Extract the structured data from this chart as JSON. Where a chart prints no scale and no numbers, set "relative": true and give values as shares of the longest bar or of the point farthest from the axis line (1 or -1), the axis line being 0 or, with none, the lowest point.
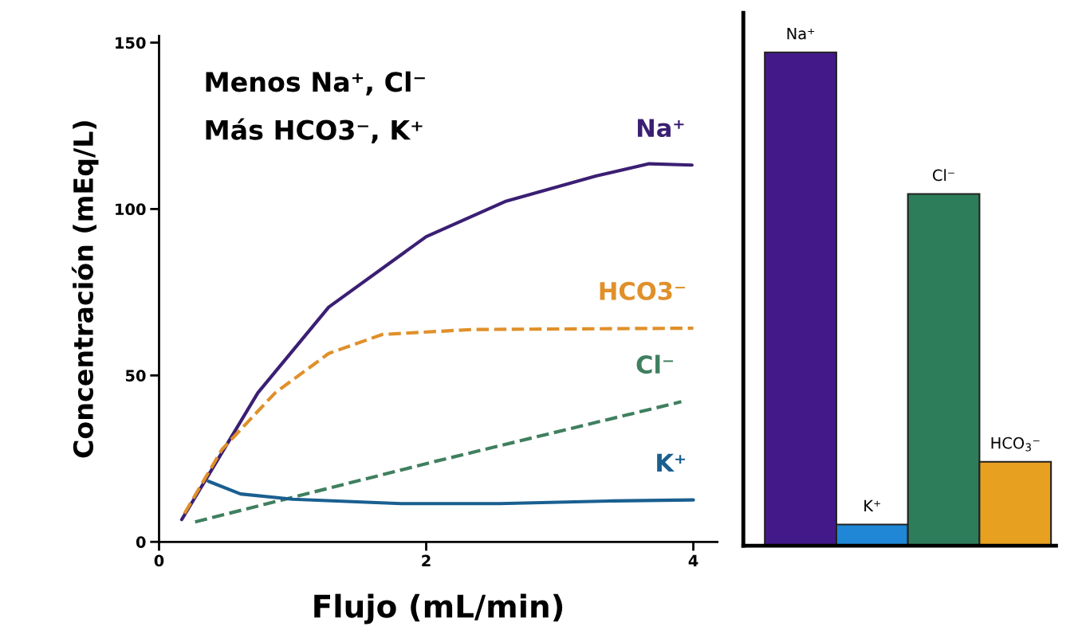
{
  "chart_data": [
    {
      "type": "line",
      "xlabel": "Flujo (mL/min)",
      "ylabel": "Concentración (mEq/L)",
      "xlim": [
        0,
        4.18
      ],
      "ylim": [
        0,
        152
      ],
      "xticks": [
        0,
        2,
        4
      ],
      "yticks": [
        0,
        50,
        100,
        150
      ],
      "grid": false,
      "annotations": [
        "Menos Na⁺, Cl⁻",
        "Más HCO3⁻, K⁺"
      ],
      "series": [
        {
          "name": "Na⁺",
          "color": "#3b1f73",
          "line_style": "solid",
          "x": [
            0.17,
            0.74,
            1.27,
            2.0,
            2.6,
            3.27,
            3.67,
            3.99
          ],
          "values": [
            6.7,
            44.8,
            70.5,
            91.7,
            102.4,
            109.9,
            113.6,
            113.2
          ]
        },
        {
          "name": "HCO3⁻",
          "color": "#e0902a",
          "line_style": "dashed",
          "x": [
            0.19,
            0.47,
            0.87,
            1.27,
            1.67,
            2.34,
            4.0
          ],
          "values": [
            8.5,
            27.7,
            44.8,
            56.6,
            62.3,
            63.8,
            64.2
          ]
        },
        {
          "name": "Cl⁻",
          "color": "#3f7f5f",
          "line_style": "dashed",
          "x": [
            0.27,
            2.07,
            3.91
          ],
          "values": [
            6.0,
            24.2,
            42.1
          ]
        },
        {
          "name": "K⁺",
          "color": "#1a5f90",
          "line_style": "solid",
          "x": [
            0.37,
            0.61,
            1.0,
            1.81,
            2.55,
            3.4,
            4.0
          ],
          "values": [
            18.2,
            14.4,
            12.8,
            11.5,
            11.5,
            12.3,
            12.6
          ]
        }
      ]
    },
    {
      "type": "bar",
      "relative": true,
      "categories": [
        "Na⁺",
        "K⁺",
        "Cl⁻",
        "HCO$_{3}$⁻"
      ],
      "values": [
        1,
        0.043,
        0.713,
        0.17
      ],
      "colors": [
        "#43198a",
        "#1f87d6",
        "#2e7d5a",
        "#e8a020"
      ]
    }
  ]
}
